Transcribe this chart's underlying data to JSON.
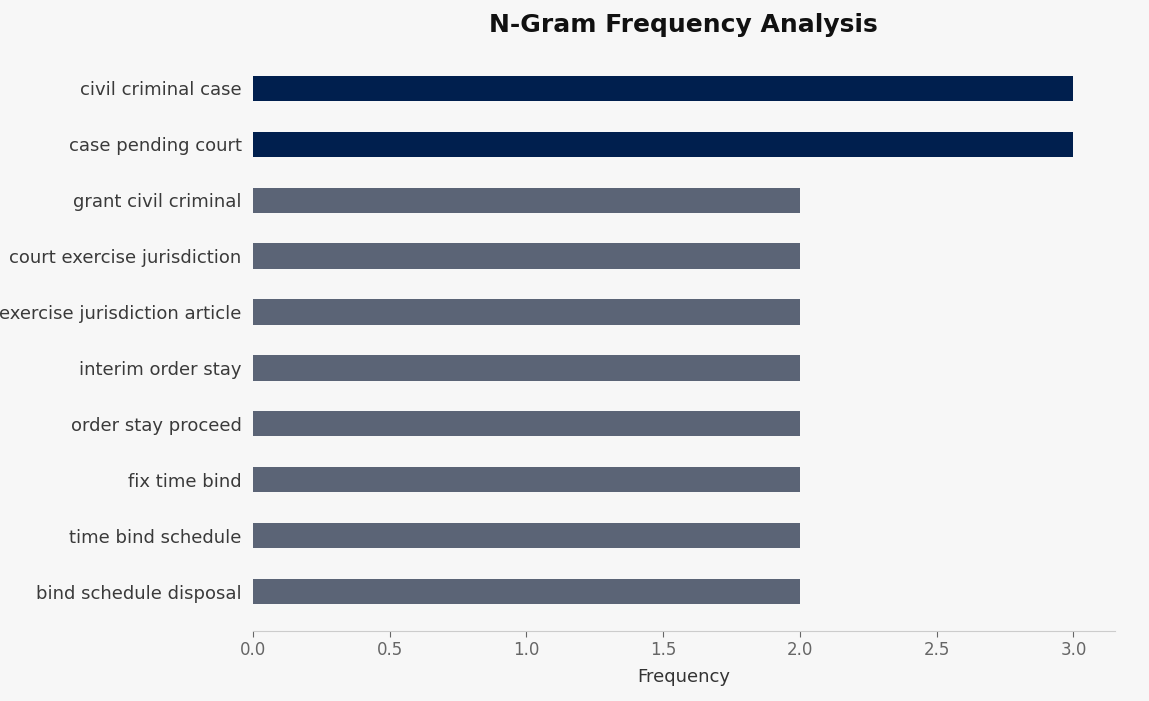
{
  "title": "N-Gram Frequency Analysis",
  "xlabel": "Frequency",
  "categories": [
    "bind schedule disposal",
    "time bind schedule",
    "fix time bind",
    "order stay proceed",
    "interim order stay",
    "exercise jurisdiction article",
    "court exercise jurisdiction",
    "grant civil criminal",
    "case pending court",
    "civil criminal case"
  ],
  "values": [
    2,
    2,
    2,
    2,
    2,
    2,
    2,
    2,
    3,
    3
  ],
  "bar_colors": [
    "#5b6476",
    "#5b6476",
    "#5b6476",
    "#5b6476",
    "#5b6476",
    "#5b6476",
    "#5b6476",
    "#5b6476",
    "#001f4e",
    "#001f4e"
  ],
  "xlim": [
    0,
    3.15
  ],
  "xticks": [
    0.0,
    0.5,
    1.0,
    1.5,
    2.0,
    2.5,
    3.0
  ],
  "background_color": "#f7f7f7",
  "plot_area_color": "#f0f0f0",
  "title_fontsize": 18,
  "label_fontsize": 13,
  "tick_fontsize": 12,
  "bar_height": 0.45
}
